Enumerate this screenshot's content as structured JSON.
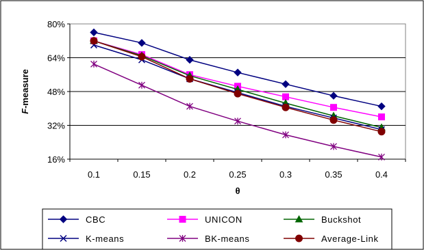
{
  "chart_data": {
    "type": "line",
    "xlabel": "θ",
    "ylabel_italic": "F",
    "ylabel_rest": "-measure",
    "categories": [
      "0.1",
      "0.15",
      "0.2",
      "0.25",
      "0.3",
      "0.35",
      "0.4"
    ],
    "y_ticks": [
      "16%",
      "32%",
      "48%",
      "64%",
      "80%"
    ],
    "ylim": [
      16,
      80
    ],
    "y_step": 16,
    "grid": "horizontal",
    "legend_position": "bottom",
    "series": [
      {
        "name": "CBC",
        "color": "#000080",
        "marker": "diamond",
        "values": [
          76,
          71,
          63,
          57,
          51.5,
          46,
          41
        ]
      },
      {
        "name": "UNICON",
        "color": "#FF00FF",
        "marker": "square",
        "values": [
          72,
          65.5,
          56,
          50.5,
          45.5,
          40.5,
          36
        ]
      },
      {
        "name": "Buckshot",
        "color": "#006400",
        "marker": "triangle",
        "values": [
          72,
          65,
          55.5,
          49,
          42.5,
          36.5,
          31
        ]
      },
      {
        "name": "K-means",
        "color": "#000080",
        "marker": "x",
        "values": [
          70,
          63,
          54,
          47.5,
          41,
          35.5,
          30
        ]
      },
      {
        "name": "BK-means",
        "color": "#800080",
        "marker": "star",
        "values": [
          61,
          51,
          41,
          34,
          27.5,
          22,
          17
        ]
      },
      {
        "name": "Average-Link",
        "color": "#800000",
        "marker": "circle",
        "values": [
          72,
          64.5,
          54,
          47,
          40.5,
          34.5,
          29
        ]
      }
    ]
  }
}
